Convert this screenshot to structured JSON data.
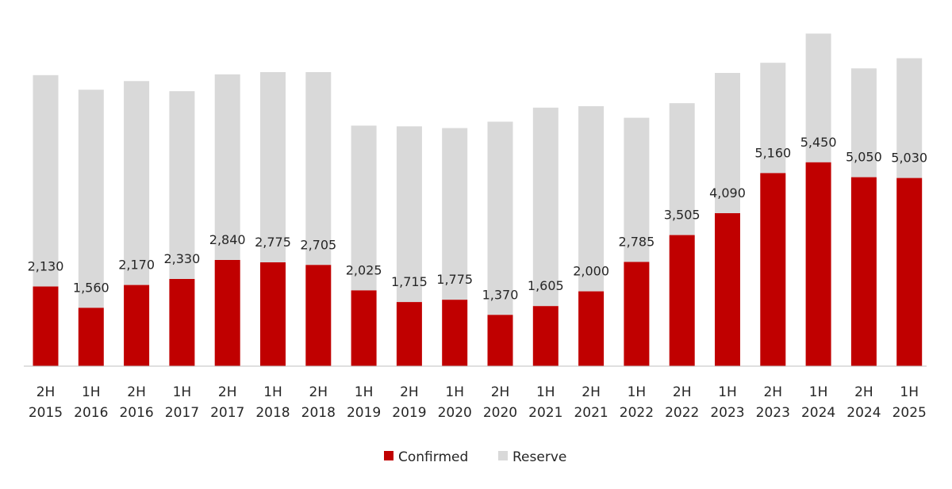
{
  "chart_data": {
    "type": "bar",
    "stacked": true,
    "categories": [
      [
        "2H",
        "2015"
      ],
      [
        "1H",
        "2016"
      ],
      [
        "2H",
        "2016"
      ],
      [
        "1H",
        "2017"
      ],
      [
        "2H",
        "2017"
      ],
      [
        "1H",
        "2018"
      ],
      [
        "2H",
        "2018"
      ],
      [
        "1H",
        "2019"
      ],
      [
        "2H",
        "2019"
      ],
      [
        "1H",
        "2020"
      ],
      [
        "2H",
        "2020"
      ],
      [
        "1H",
        "2021"
      ],
      [
        "2H",
        "2021"
      ],
      [
        "1H",
        "2022"
      ],
      [
        "2H",
        "2022"
      ],
      [
        "1H",
        "2023"
      ],
      [
        "2H",
        "2023"
      ],
      [
        "1H",
        "2024"
      ],
      [
        "2H",
        "2024"
      ],
      [
        "1H",
        "2025"
      ]
    ],
    "series": [
      {
        "name": "Confirmed",
        "color": "#c00000",
        "values": [
          2130,
          1560,
          2170,
          2330,
          2840,
          2775,
          2705,
          2025,
          1715,
          1775,
          1370,
          1605,
          2000,
          2785,
          3505,
          4090,
          5160,
          5450,
          5050,
          5030
        ],
        "labels": [
          "2,130",
          "1,560",
          "2,170",
          "2,330",
          "2,840",
          "2,775",
          "2,705",
          "2,025",
          "1,715",
          "1,775",
          "1,370",
          "1,605",
          "2,000",
          "2,785",
          "3,505",
          "4,090",
          "5,160",
          "5,450",
          "5,050",
          "5,030"
        ]
      },
      {
        "name": "Reserve",
        "color": "#d9d9d9",
        "values": [
          5650,
          5830,
          5450,
          5020,
          4960,
          5085,
          5155,
          4405,
          4695,
          4590,
          5165,
          5305,
          4950,
          3855,
          3525,
          3750,
          2950,
          3440,
          2910,
          3200
        ]
      }
    ],
    "ylim": [
      0,
      9000
    ],
    "grid": false,
    "legend_position": "bottom"
  }
}
